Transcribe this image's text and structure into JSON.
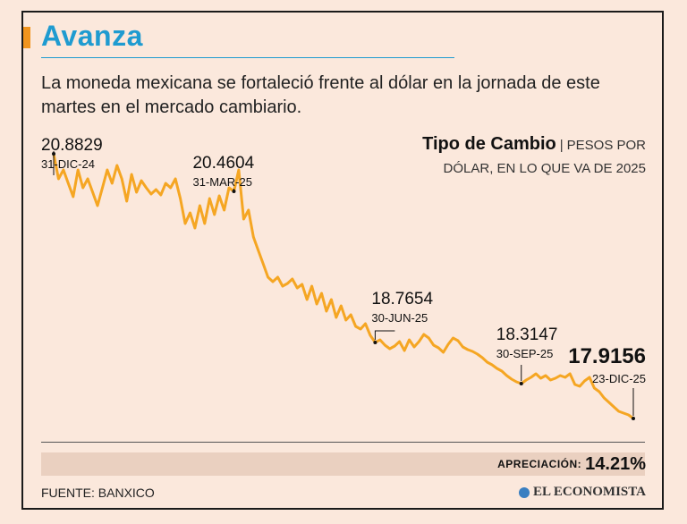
{
  "header": {
    "title": "Avanza",
    "subtitle": "La moneda mexicana se fortaleció frente al dólar en la jornada de este martes en el mercado cambiario."
  },
  "chart_title": {
    "main": "Tipo de Cambio",
    "separator": "|",
    "line1": "PESOS POR",
    "line2": "DÓLAR, EN LO QUE VA DE 2025"
  },
  "footer": {
    "appreciation_label": "APRECIACIÓN:",
    "appreciation_value": "14.21%",
    "source": "FUENTE: BANXICO",
    "brand": "EL ECONOMISTA"
  },
  "colors": {
    "line": "#f5a623",
    "title": "#1f9bd0",
    "accent": "#f0941e",
    "background": "#fbe8dc"
  },
  "chart_data": {
    "type": "line",
    "title": "Tipo de Cambio",
    "subtitle": "PESOS POR DÓLAR, EN LO QUE VA DE 2025",
    "xlabel": "",
    "ylabel": "Pesos por dólar",
    "ylim": [
      17.7,
      21.1
    ],
    "grid": false,
    "x_start": "31-DIC-24",
    "x_end": "23-DIC-25",
    "values": [
      20.88,
      20.6,
      20.7,
      20.55,
      20.4,
      20.7,
      20.5,
      20.6,
      20.45,
      20.3,
      20.5,
      20.7,
      20.55,
      20.75,
      20.6,
      20.35,
      20.65,
      20.45,
      20.58,
      20.5,
      20.43,
      20.48,
      20.42,
      20.55,
      20.5,
      20.6,
      20.38,
      20.1,
      20.22,
      20.05,
      20.3,
      20.1,
      20.38,
      20.2,
      20.41,
      20.25,
      20.5,
      20.46,
      20.7,
      20.15,
      20.25,
      19.95,
      19.8,
      19.65,
      19.5,
      19.45,
      19.5,
      19.4,
      19.43,
      19.48,
      19.38,
      19.42,
      19.25,
      19.4,
      19.2,
      19.32,
      19.12,
      19.25,
      19.05,
      19.18,
      19.02,
      19.08,
      18.95,
      18.92,
      18.98,
      18.85,
      18.77,
      18.8,
      18.74,
      18.7,
      18.73,
      18.78,
      18.68,
      18.8,
      18.72,
      18.78,
      18.86,
      18.82,
      18.74,
      18.71,
      18.66,
      18.75,
      18.82,
      18.79,
      18.72,
      18.69,
      18.67,
      18.64,
      18.6,
      18.55,
      18.52,
      18.48,
      18.45,
      18.4,
      18.36,
      18.33,
      18.31,
      18.35,
      18.38,
      18.42,
      18.37,
      18.4,
      18.35,
      18.37,
      18.4,
      18.38,
      18.42,
      18.3,
      18.28,
      18.34,
      18.38,
      18.26,
      18.22,
      18.15,
      18.1,
      18.05,
      18.0,
      17.98,
      17.96,
      17.92
    ]
  },
  "annotations": [
    {
      "value": "20.8829",
      "date": "31-DIC-24",
      "index": 0
    },
    {
      "value": "20.4604",
      "date": "31-MAR-25",
      "index": 37
    },
    {
      "value": "18.7654",
      "date": "30-JUN-25",
      "index": 66
    },
    {
      "value": "18.3147",
      "date": "30-SEP-25",
      "index": 96
    },
    {
      "value": "17.9156",
      "date": "23-DIC-25",
      "index": 119
    }
  ]
}
